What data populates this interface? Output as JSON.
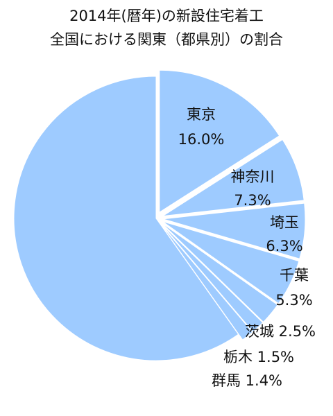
{
  "title_line1": "2014年(暦年)の新設住宅着工",
  "title_line2": "全国における関東（都県別）の割合",
  "chart_data": {
    "type": "pie",
    "title": "2014年(暦年)の新設住宅着工 全国における関東（都県別）の割合",
    "colors": {
      "slice": "#9ecbff",
      "text": "#111111"
    },
    "slices": [
      {
        "name": "東京",
        "value": 16.0,
        "value_label": "16.0%",
        "exploded": true
      },
      {
        "name": "神奈川",
        "value": 7.3,
        "value_label": "7.3%",
        "exploded": true
      },
      {
        "name": "埼玉",
        "value": 6.3,
        "value_label": "6.3%",
        "exploded": true
      },
      {
        "name": "千葉",
        "value": 5.3,
        "value_label": "5.3%",
        "exploded": true
      },
      {
        "name": "茨城",
        "value": 2.5,
        "value_label": "2.5%",
        "exploded": true
      },
      {
        "name": "栃木",
        "value": 1.5,
        "value_label": "1.5%",
        "exploded": true
      },
      {
        "name": "群馬",
        "value": 1.4,
        "value_label": "1.4%",
        "exploded": true
      },
      {
        "name": "",
        "value": 60.0,
        "value_label": "",
        "exploded": false
      }
    ]
  }
}
